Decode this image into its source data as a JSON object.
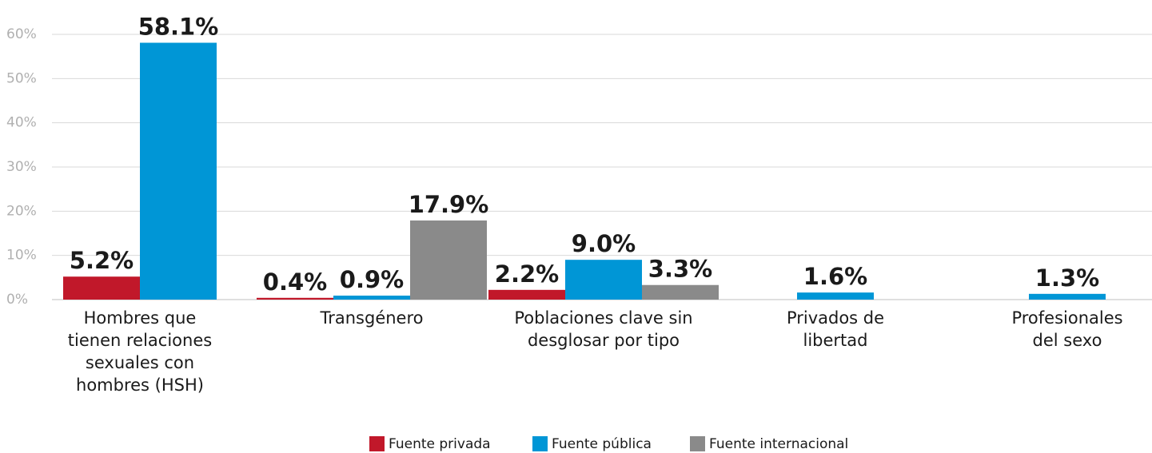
{
  "chart_data": {
    "type": "bar",
    "categories": [
      "Hombres que tienen relaciones sexuales con hombres (HSH)",
      "Transgénero",
      "Poblaciones clave sin desglosar por tipo",
      "Privados de libertad",
      "Profesionales del sexo"
    ],
    "series": [
      {
        "name": "Fuente privada",
        "color": "#c1182a",
        "values": [
          5.2,
          0.4,
          2.2,
          null,
          null
        ],
        "value_labels": [
          "5.2%",
          "0.4%",
          "2.2%",
          null,
          null
        ]
      },
      {
        "name": "Fuente pública",
        "color": "#0096d6",
        "values": [
          58.1,
          0.9,
          9.0,
          1.6,
          1.3
        ],
        "value_labels": [
          "58.1%",
          "0.9%",
          "9.0%",
          "1.6%",
          "1.3%"
        ]
      },
      {
        "name": "Fuente internacional",
        "color": "#8a8a8a",
        "values": [
          null,
          17.9,
          3.3,
          null,
          null
        ],
        "value_labels": [
          null,
          "17.9%",
          "3.3%",
          null,
          null
        ]
      }
    ],
    "ylim": [
      0,
      60
    ],
    "yticks": [
      {
        "value": 0,
        "label": "0%"
      },
      {
        "value": 10,
        "label": "10%"
      },
      {
        "value": 20,
        "label": "20%"
      },
      {
        "value": 30,
        "label": "30%"
      },
      {
        "value": 40,
        "label": "40%"
      },
      {
        "value": 50,
        "label": "50%"
      },
      {
        "value": 60,
        "label": "60%"
      }
    ],
    "grid": true,
    "legend": "bottom"
  }
}
